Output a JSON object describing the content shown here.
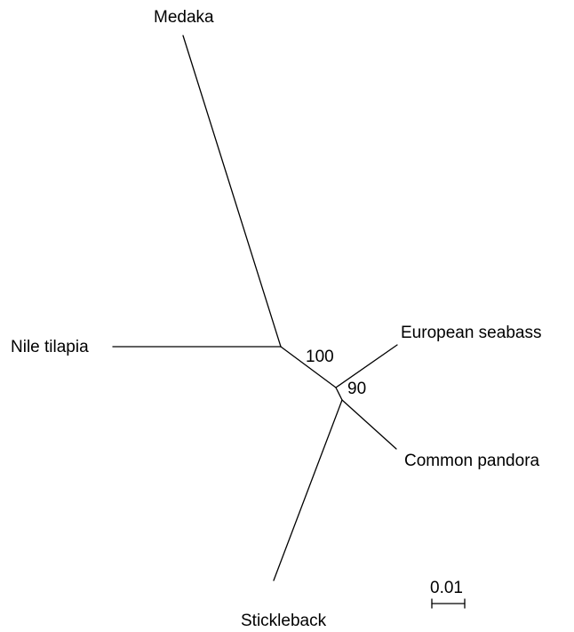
{
  "tree": {
    "taxa": {
      "medaka": "Medaka",
      "nile_tilapia": "Nile tilapia",
      "european_seabass": "European seabass",
      "common_pandora": "Common pandora",
      "stickleback": "Stickleback"
    },
    "support": {
      "internal_node": "100",
      "seabass_pandora_node": "90"
    },
    "scale_bar": {
      "label": "0.01"
    },
    "colors": {
      "line": "#000000",
      "background": "#ffffff"
    }
  }
}
